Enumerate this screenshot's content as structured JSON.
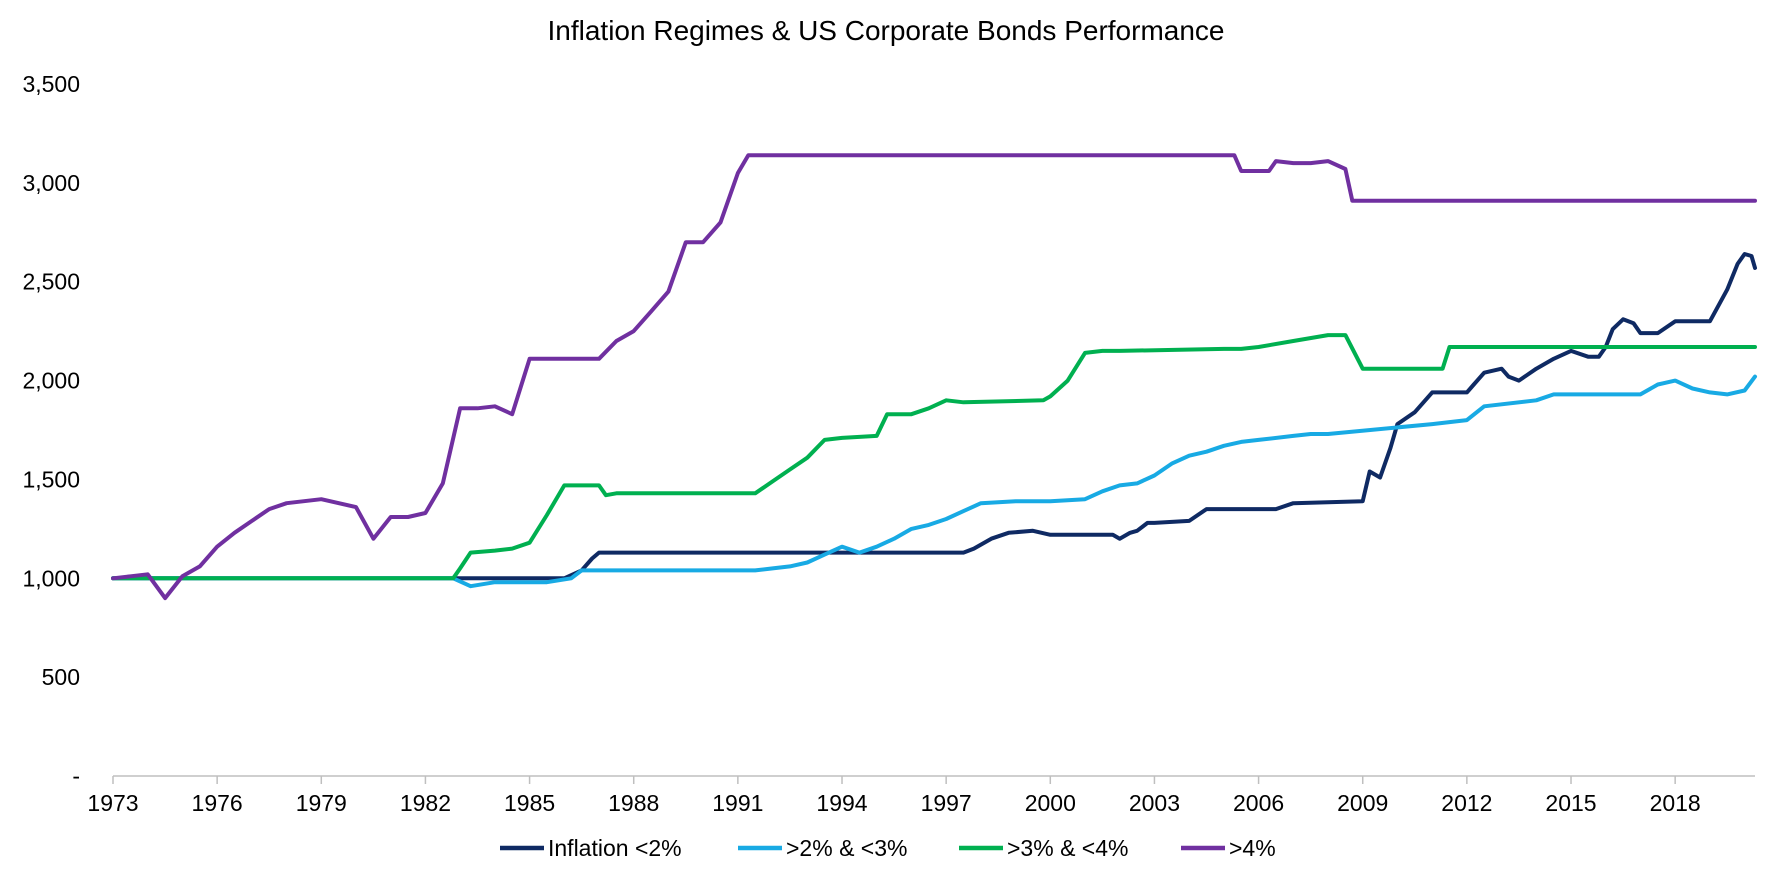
{
  "chart_data": {
    "type": "line",
    "title": "Inflation Regimes & US Corporate Bonds Performance",
    "xlabel": "",
    "ylabel": "",
    "xlim": [
      1973,
      2020.3
    ],
    "ylim": [
      0,
      3500
    ],
    "grid": false,
    "legend_position": "bottom",
    "y_ticks": [
      {
        "value": 0,
        "label": "-"
      },
      {
        "value": 500,
        "label": "500"
      },
      {
        "value": 1000,
        "label": "1,000"
      },
      {
        "value": 1500,
        "label": "1,500"
      },
      {
        "value": 2000,
        "label": "2,000"
      },
      {
        "value": 2500,
        "label": "2,500"
      },
      {
        "value": 3000,
        "label": "3,000"
      },
      {
        "value": 3500,
        "label": "3,500"
      }
    ],
    "x_ticks": [
      {
        "value": 1973,
        "label": "1973"
      },
      {
        "value": 1976,
        "label": "1976"
      },
      {
        "value": 1979,
        "label": "1979"
      },
      {
        "value": 1982,
        "label": "1982"
      },
      {
        "value": 1985,
        "label": "1985"
      },
      {
        "value": 1988,
        "label": "1988"
      },
      {
        "value": 1991,
        "label": "1991"
      },
      {
        "value": 1994,
        "label": "1994"
      },
      {
        "value": 1997,
        "label": "1997"
      },
      {
        "value": 2000,
        "label": "2000"
      },
      {
        "value": 2003,
        "label": "2003"
      },
      {
        "value": 2006,
        "label": "2006"
      },
      {
        "value": 2009,
        "label": "2009"
      },
      {
        "value": 2012,
        "label": "2012"
      },
      {
        "value": 2015,
        "label": "2015"
      },
      {
        "value": 2018,
        "label": "2018"
      }
    ],
    "series": [
      {
        "name": "Inflation <2%",
        "color": "#0f2a63",
        "x": [
          1973,
          1983,
          1986,
          1986.5,
          1986.8,
          1987,
          1997.5,
          1997.8,
          1998.3,
          1998.8,
          1999.5,
          2000,
          2001,
          2001.8,
          2002,
          2002.3,
          2002.5,
          2002.8,
          2003,
          2004,
          2004.5,
          2006.5,
          2007,
          2009,
          2009.2,
          2009.5,
          2009.8,
          2010,
          2010.5,
          2011,
          2012,
          2012.2,
          2012.5,
          2013,
          2013.2,
          2013.5,
          2014,
          2014.5,
          2015,
          2015.5,
          2015.8,
          2016,
          2016.2,
          2016.5,
          2016.8,
          2017,
          2017.5,
          2018,
          2019,
          2019.5,
          2019.8,
          2020,
          2020.2,
          2020.3
        ],
        "values": [
          1000,
          1000,
          1000,
          1040,
          1100,
          1130,
          1130,
          1150,
          1200,
          1230,
          1240,
          1220,
          1220,
          1220,
          1200,
          1230,
          1240,
          1280,
          1280,
          1290,
          1350,
          1350,
          1380,
          1390,
          1540,
          1510,
          1660,
          1780,
          1840,
          1940,
          1940,
          1980,
          2040,
          2060,
          2020,
          2000,
          2060,
          2110,
          2150,
          2120,
          2120,
          2170,
          2260,
          2310,
          2290,
          2240,
          2240,
          2300,
          2300,
          2460,
          2590,
          2640,
          2630,
          2570
        ]
      },
      {
        "name": ">2% & <3%",
        "color": "#18aae4",
        "x": [
          1973,
          1982.8,
          1983.3,
          1984,
          1985.5,
          1986.2,
          1986.5,
          1987,
          1991.5,
          1992,
          1992.5,
          1993,
          1993.5,
          1994,
          1994.5,
          1995,
          1995.5,
          1996,
          1996.5,
          1997,
          1997.5,
          1998,
          1999,
          2000,
          2001,
          2001.5,
          2002,
          2002.5,
          2003,
          2003.5,
          2004,
          2004.5,
          2005,
          2005.5,
          2006,
          2007,
          2007.5,
          2008,
          2011,
          2011.5,
          2012,
          2012.5,
          2014,
          2014.5,
          2017,
          2017.5,
          2018,
          2018.5,
          2019,
          2019.5,
          2020,
          2020.3
        ],
        "values": [
          1000,
          1000,
          960,
          980,
          980,
          1000,
          1040,
          1040,
          1040,
          1050,
          1060,
          1080,
          1120,
          1160,
          1130,
          1160,
          1200,
          1250,
          1270,
          1300,
          1340,
          1380,
          1390,
          1390,
          1400,
          1440,
          1470,
          1480,
          1520,
          1580,
          1620,
          1640,
          1670,
          1690,
          1700,
          1720,
          1730,
          1730,
          1780,
          1790,
          1800,
          1870,
          1900,
          1930,
          1930,
          1980,
          2000,
          1960,
          1940,
          1930,
          1950,
          2020
        ]
      },
      {
        "name": ">3% & <4%",
        "color": "#00b050",
        "x": [
          1973,
          1982.8,
          1983,
          1983.3,
          1984,
          1984.5,
          1985,
          1985.5,
          1986,
          1987,
          1987.2,
          1987.5,
          1988,
          1991.5,
          1992,
          1992.5,
          1993,
          1993.5,
          1994,
          1995,
          1995.3,
          1996,
          1996.5,
          1997,
          1997.5,
          1999.8,
          2000,
          2000.5,
          2001,
          2001.5,
          2002,
          2005,
          2005.5,
          2006,
          2007,
          2008,
          2008.5,
          2009,
          2011.3,
          2011.5,
          2012,
          2020.3
        ],
        "values": [
          1000,
          1000,
          1050,
          1130,
          1140,
          1150,
          1180,
          1320,
          1470,
          1470,
          1420,
          1430,
          1430,
          1430,
          1490,
          1550,
          1610,
          1700,
          1710,
          1720,
          1830,
          1830,
          1860,
          1900,
          1890,
          1900,
          1920,
          2000,
          2140,
          2150,
          2150,
          2160,
          2160,
          2170,
          2200,
          2230,
          2230,
          2060,
          2060,
          2170,
          2170,
          2170
        ]
      },
      {
        "name": ">4%",
        "color": "#7030a0",
        "x": [
          1973,
          1973.5,
          1974,
          1974.5,
          1975,
          1975.5,
          1976,
          1976.5,
          1977,
          1977.5,
          1978,
          1979,
          1980,
          1980.5,
          1981,
          1981.5,
          1982,
          1982.5,
          1983,
          1983.5,
          1984,
          1984.5,
          1985,
          1985.5,
          1987,
          1987.5,
          1988,
          1988.5,
          1989,
          1989.5,
          1990,
          1990.5,
          1991,
          1991.3,
          1991.5,
          2005.3,
          2005.5,
          2006.3,
          2006.5,
          2007,
          2007.5,
          2008,
          2008.5,
          2008.7,
          2020.3
        ],
        "values": [
          1000,
          1010,
          1020,
          900,
          1010,
          1060,
          1160,
          1230,
          1290,
          1350,
          1380,
          1400,
          1360,
          1200,
          1310,
          1310,
          1330,
          1480,
          1860,
          1860,
          1870,
          1830,
          2110,
          2110,
          2110,
          2200,
          2250,
          2350,
          2450,
          2700,
          2700,
          2800,
          3050,
          3140,
          3140,
          3140,
          3060,
          3060,
          3110,
          3100,
          3100,
          3110,
          3070,
          2910,
          2910
        ]
      }
    ]
  }
}
